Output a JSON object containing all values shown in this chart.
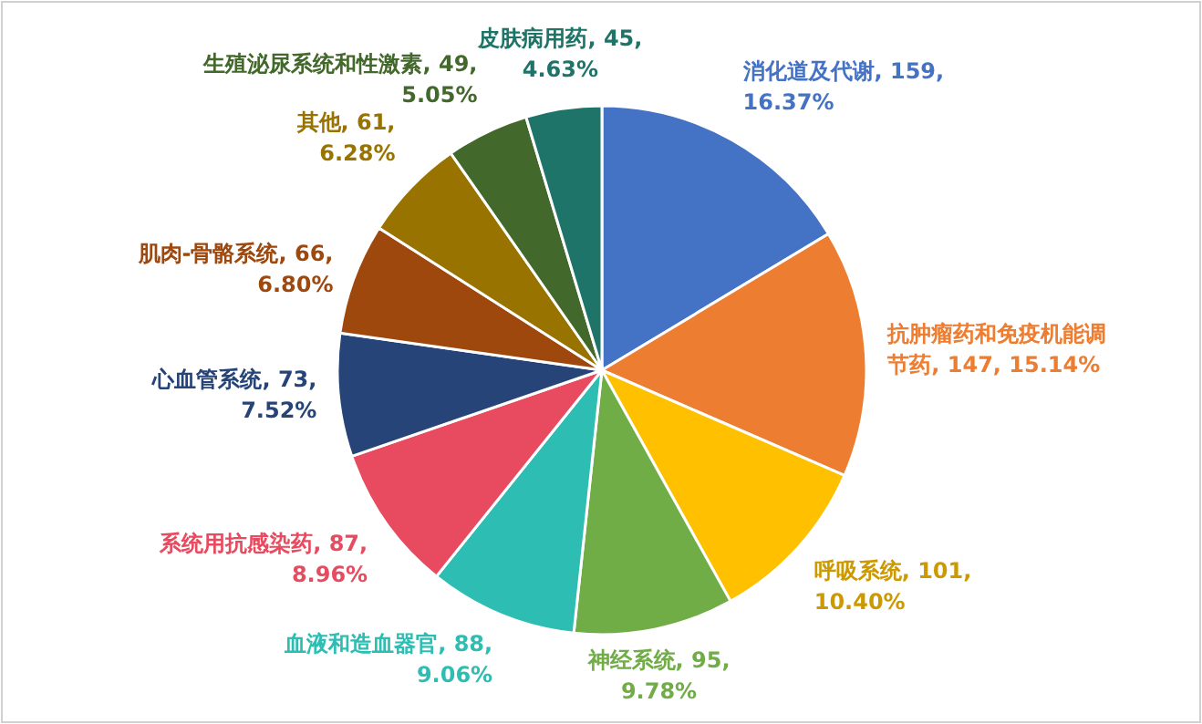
{
  "chart_data": {
    "type": "pie",
    "categories": [
      "消化道及代谢",
      "抗肿瘤药和免疫机能调节药",
      "呼吸系统",
      "神经系统",
      "血液和造血器官",
      "系统用抗感染药",
      "心血管系统",
      "肌肉-骨骼系统",
      "其他",
      "生殖泌尿系统和性激素",
      "皮肤病用药"
    ],
    "values": [
      159,
      147,
      101,
      95,
      88,
      87,
      73,
      66,
      61,
      49,
      45
    ],
    "value_labels": [
      "159, 16.37%",
      "147, 15.14%",
      "101, 10.40%",
      "95, 9.78%",
      "88, 9.06%",
      "87, 8.96%",
      "73, 7.52%",
      "66, 6.80%",
      "61, 6.28%",
      "49, 5.05%",
      "45, 4.63%"
    ],
    "colors": [
      "#4472c4",
      "#ed7d31",
      "#ffc000",
      "#70ad47",
      "#2ebdb3",
      "#e84a5f",
      "#264478",
      "#9e480e",
      "#997300",
      "#43682b",
      "#1e7468"
    ],
    "legend": false
  }
}
